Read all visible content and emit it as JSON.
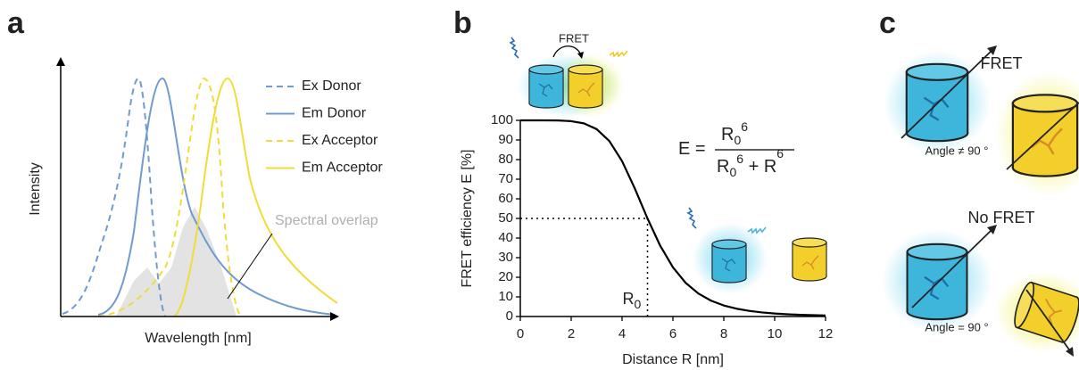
{
  "panel_labels": [
    "a",
    "b",
    "c"
  ],
  "panel_a": {
    "y_label": "Intensity",
    "x_label": "Wavelength [nm]",
    "legend": [
      {
        "name": "Ex Donor",
        "color": "#6f9bd1",
        "dashed": true
      },
      {
        "name": "Em Donor",
        "color": "#6f9bd1",
        "dashed": false
      },
      {
        "name": "Ex Acceptor",
        "color": "#f0dc3a",
        "dashed": true
      },
      {
        "name": "Em Acceptor",
        "color": "#f0dc3a",
        "dashed": false
      }
    ],
    "annotation": "Spectral overlap"
  },
  "chart_data": {
    "type": "line",
    "x_label": "Distance R [nm]",
    "y_label": "FRET efficiency E [%]",
    "icon_label": "FRET",
    "x": [
      0,
      0.5,
      1,
      1.5,
      2,
      2.5,
      3,
      3.5,
      4,
      4.5,
      5,
      5.5,
      6,
      6.5,
      7,
      7.5,
      8,
      8.5,
      9,
      9.5,
      10,
      10.5,
      11,
      11.5,
      12
    ],
    "series": [
      {
        "color": "#000000",
        "values": [
          100,
          100,
          99.99,
          99.93,
          99.59,
          98.46,
          95.54,
          89.47,
          79.23,
          65.3,
          50,
          36.08,
          25.09,
          17.16,
          11.72,
          8.07,
          5.62,
          3.98,
          2.86,
          2.08,
          1.54,
          1.15,
          0.87,
          0.67,
          0.52
        ]
      }
    ],
    "xlim": [
      0,
      12
    ],
    "ylim": [
      0,
      100
    ],
    "xticks": [
      0,
      2,
      4,
      6,
      8,
      10,
      12
    ],
    "yticks": [
      0,
      10,
      20,
      30,
      40,
      50,
      60,
      70,
      80,
      90,
      100
    ],
    "reference": {
      "x": 5,
      "y": 50,
      "label": "R",
      "label_sub": "0"
    },
    "formula": {
      "lhs": "E =",
      "numerator": [
        "R",
        "0",
        "6"
      ],
      "denominator": [
        "R",
        "0",
        "6",
        " + R",
        "6"
      ]
    }
  },
  "panel_c": {
    "top_title": "FRET",
    "top_angle": "Angle ≠ 90 °",
    "bottom_title": "No FRET",
    "bottom_angle": "Angle = 90 °"
  }
}
